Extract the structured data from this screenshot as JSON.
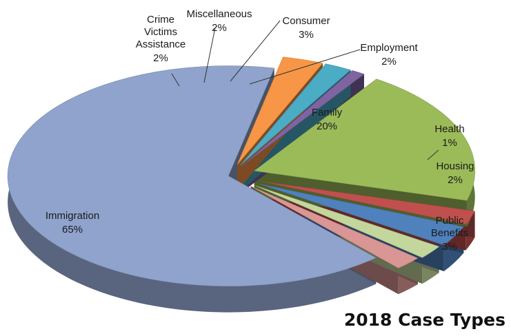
{
  "chart_data": {
    "type": "pie",
    "title": "2018 Case Types",
    "slices": [
      {
        "label": "Immigration",
        "value": 65,
        "value_label": "65%",
        "color": "#8fa3cc"
      },
      {
        "label": "Crime Victims Assistance",
        "value": 2,
        "value_label": "2%",
        "color": "#d99694"
      },
      {
        "label": "Miscellaneous",
        "value": 2,
        "value_label": "2%",
        "color": "#c3d69b"
      },
      {
        "label": "Consumer",
        "value": 3,
        "value_label": "3%",
        "color": "#4f81bd"
      },
      {
        "label": "Employment",
        "value": 2,
        "value_label": "2%",
        "color": "#c0504d"
      },
      {
        "label": "Family",
        "value": 20,
        "value_label": "20%",
        "color": "#9bbb59"
      },
      {
        "label": "Health",
        "value": 1,
        "value_label": "1%",
        "color": "#8064a2"
      },
      {
        "label": "Housing",
        "value": 2,
        "value_label": "2%",
        "color": "#4bacc6"
      },
      {
        "label": "Public Benefits",
        "value": 3,
        "value_label": "3%",
        "color": "#f79646"
      }
    ],
    "style": "3d-exploded",
    "legend": "none"
  }
}
